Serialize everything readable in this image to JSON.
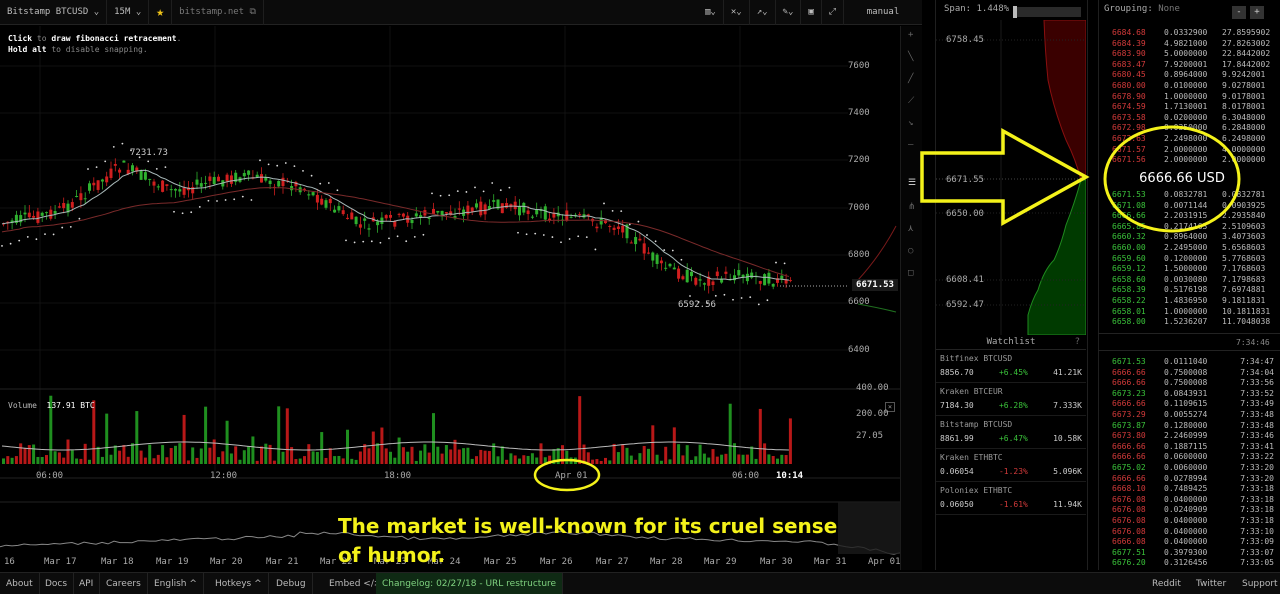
{
  "topbar": {
    "symbol": "Bitstamp BTCUSD",
    "interval": "15M",
    "site": "bitstamp.net",
    "mode": "manual"
  },
  "hint": {
    "line1_key": "Click",
    "line1_mid": " to ",
    "line1_action": "draw fibonacci retracement",
    "line1_end": ".",
    "line2_key": "Hold alt",
    "line2_mid": " to disable snapping."
  },
  "chart": {
    "price_ticks": [
      "7600",
      "7400",
      "7200",
      "7000",
      "6800",
      "6600",
      "6400"
    ],
    "high_label": "7231.73",
    "low_label": "6592.56",
    "current_price": "6671.53",
    "volume_label": "Volume",
    "volume_value": "137.91 BTC",
    "volume_ticks": [
      "400.00",
      "200.00",
      "27.05"
    ],
    "time_ticks": [
      "06:00",
      "12:00",
      "18:00",
      "Apr 01",
      "06:00",
      "10:14"
    ],
    "nav_ticks": [
      "16",
      "Mar 17",
      "Mar 18",
      "Mar 19",
      "Mar 20",
      "Mar 21",
      "Mar 22",
      "Mar 23",
      "Mar 24",
      "Mar 25",
      "Mar 26",
      "Mar 27",
      "Mar 28",
      "Mar 29",
      "Mar 30",
      "Mar 31",
      "Apr 01"
    ],
    "annotation": "The market is well-known for its cruel sense of humor.",
    "annotation_line1": "The market is well-known for its cruel sense",
    "annotation_line2": "of humor.",
    "colors": {
      "up": "#2fb12f",
      "down": "#d11f1f",
      "annotation": "#f4f21a"
    }
  },
  "depth": {
    "span_label": "Span:",
    "span_value": "1.448%",
    "levels": [
      "6758.45",
      "6671.55",
      "6650.00",
      "6608.41",
      "6592.47"
    ]
  },
  "watchlist": {
    "title": "Watchlist",
    "items": [
      {
        "name": "Bitfinex BTCUSD",
        "price": "8856.70",
        "change": "+6.45%",
        "volume": "41.21K",
        "dir": "pos"
      },
      {
        "name": "Kraken BTCEUR",
        "price": "7184.30",
        "change": "+6.28%",
        "volume": "7.333K",
        "dir": "pos"
      },
      {
        "name": "Bitstamp BTCUSD",
        "price": "8861.99",
        "change": "+6.47%",
        "volume": "10.58K",
        "dir": "pos"
      },
      {
        "name": "Kraken ETHBTC",
        "price": "0.06054",
        "change": "-1.23%",
        "volume": "5.096K",
        "dir": "neg"
      },
      {
        "name": "Poloniex ETHBTC",
        "price": "0.06050",
        "change": "-1.61%",
        "volume": "11.94K",
        "dir": "neg"
      }
    ]
  },
  "orderbook": {
    "grouping_label": "Grouping:",
    "grouping_value": "None",
    "mid_price": "6666.66 USD",
    "asks": [
      [
        "6684.68",
        "0.0332900",
        "27.8595902"
      ],
      [
        "6684.39",
        "4.9821000",
        "27.8263002"
      ],
      [
        "6683.90",
        "5.0000000",
        "22.8442002"
      ],
      [
        "6683.47",
        "7.9200001",
        "17.8442002"
      ],
      [
        "6680.45",
        "0.8964000",
        "9.9242001"
      ],
      [
        "6680.00",
        "0.0100000",
        "9.0278001"
      ],
      [
        "6678.90",
        "1.0000000",
        "9.0178001"
      ],
      [
        "6674.59",
        "1.7130001",
        "8.0178001"
      ],
      [
        "6673.58",
        "0.0200000",
        "6.3048000"
      ],
      [
        "6672.98",
        "0.0350000",
        "6.2848000"
      ],
      [
        "6672.63",
        "2.2498000",
        "6.2498000"
      ],
      [
        "6671.57",
        "2.0000000",
        "4.0000000"
      ],
      [
        "6671.56",
        "2.0000000",
        "2.0000000"
      ]
    ],
    "bids": [
      [
        "6671.53",
        "0.0832781",
        "0.0832781"
      ],
      [
        "6671.08",
        "0.0071144",
        "0.0903925"
      ],
      [
        "6666.66",
        "2.2031915",
        "2.2935840"
      ],
      [
        "6665.85",
        "0.2174163",
        "2.5109603"
      ],
      [
        "6660.32",
        "0.8964000",
        "3.4073603"
      ],
      [
        "6660.00",
        "2.2495000",
        "5.6568603"
      ],
      [
        "6659.60",
        "0.1200000",
        "5.7768603"
      ],
      [
        "6659.12",
        "1.5000000",
        "7.1768603"
      ],
      [
        "6658.60",
        "0.0030080",
        "7.1798683"
      ],
      [
        "6658.39",
        "0.5176198",
        "7.6974881"
      ],
      [
        "6658.22",
        "1.4836950",
        "9.1811831"
      ],
      [
        "6658.01",
        "1.0000000",
        "10.1811831"
      ],
      [
        "6658.00",
        "1.5236207",
        "11.7048038"
      ]
    ],
    "trades_time_header": "7:34:46",
    "trades": [
      [
        "6671.53",
        "0.0111040",
        "7:34:47",
        "pos"
      ],
      [
        "6666.66",
        "0.7500008",
        "7:34:04",
        "neg"
      ],
      [
        "6666.66",
        "0.7500008",
        "7:33:56",
        "neg"
      ],
      [
        "6673.23",
        "0.0843931",
        "7:33:52",
        "pos"
      ],
      [
        "6666.66",
        "0.1109615",
        "7:33:49",
        "neg"
      ],
      [
        "6673.29",
        "0.0055274",
        "7:33:48",
        "neg"
      ],
      [
        "6673.87",
        "0.1280000",
        "7:33:48",
        "pos"
      ],
      [
        "6673.80",
        "2.2460999",
        "7:33:46",
        "neg"
      ],
      [
        "6666.66",
        "0.1887115",
        "7:33:41",
        "neg"
      ],
      [
        "6666.66",
        "0.0600000",
        "7:33:22",
        "neg"
      ],
      [
        "6675.02",
        "0.0060000",
        "7:33:20",
        "pos"
      ],
      [
        "6666.66",
        "0.0278994",
        "7:33:20",
        "neg"
      ],
      [
        "6668.10",
        "0.7489425",
        "7:33:18",
        "neg"
      ],
      [
        "6676.08",
        "0.0400000",
        "7:33:18",
        "neg"
      ],
      [
        "6676.08",
        "0.0240909",
        "7:33:18",
        "neg"
      ],
      [
        "6676.08",
        "0.0400000",
        "7:33:18",
        "neg"
      ],
      [
        "6676.08",
        "0.0400000",
        "7:33:10",
        "neg"
      ],
      [
        "6666.08",
        "0.0400000",
        "7:33:09",
        "neg"
      ],
      [
        "6677.51",
        "0.3979300",
        "7:33:07",
        "pos"
      ],
      [
        "6676.20",
        "0.3126456",
        "7:33:05",
        "pos"
      ]
    ]
  },
  "footer": {
    "links": [
      "About",
      "Docs",
      "API",
      "Careers",
      "English ^",
      "Hotkeys ^",
      "Debug",
      "Embed </>"
    ],
    "changelog": "Changelog: 02/27/18 - URL restructure",
    "right_links": [
      "Reddit",
      "Twitter",
      "Support"
    ]
  }
}
